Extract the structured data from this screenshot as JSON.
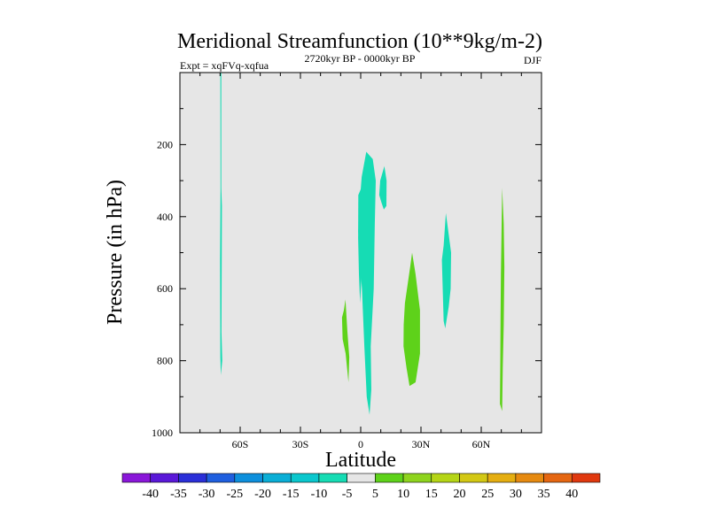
{
  "chart_data": {
    "type": "contour",
    "title": "Meridional Streamfunction (10**9kg/m-2)",
    "experiment": "Expt = xqFVq-xqfua",
    "period": "2720kyr BP - 0000kyr BP",
    "season": "DJF",
    "xlabel": "Latitude",
    "ylabel": "Pressure (in hPa)",
    "xlim": [
      -90,
      90
    ],
    "ylim": [
      0,
      1000
    ],
    "x_ticks": [
      {
        "value": -60,
        "label": "60S"
      },
      {
        "value": -30,
        "label": "30S"
      },
      {
        "value": 0,
        "label": "0"
      },
      {
        "value": 30,
        "label": "30N"
      },
      {
        "value": 60,
        "label": "60N"
      }
    ],
    "y_ticks": [
      {
        "value": 200,
        "label": "200"
      },
      {
        "value": 400,
        "label": "400"
      },
      {
        "value": 600,
        "label": "600"
      },
      {
        "value": 800,
        "label": "800"
      },
      {
        "value": 1000,
        "label": "1000"
      }
    ],
    "colorbar": {
      "labels": [
        "-40",
        "-35",
        "-30",
        "-25",
        "-20",
        "-15",
        "-10",
        "-5",
        "5",
        "10",
        "15",
        "20",
        "25",
        "30",
        "35",
        "40"
      ],
      "colors": [
        "#8a17d9",
        "#5a18d8",
        "#2a2fd8",
        "#1f5fdf",
        "#0d8fdc",
        "#0aaed6",
        "#0ac7cd",
        "#16dcb4",
        "#e6e6e6",
        "#5ed21a",
        "#8ed41e",
        "#b5d516",
        "#d3c814",
        "#e5ae11",
        "#e68a10",
        "#e56611",
        "#e0380e"
      ]
    },
    "regions": [
      {
        "level": -5,
        "outline": [
          [
            -69.9,
            0
          ],
          [
            -69.4,
            0
          ],
          [
            -69.4,
            320
          ],
          [
            -69.1,
            370
          ],
          [
            -69.3,
            720
          ],
          [
            -68.9,
            800
          ],
          [
            -69.6,
            840
          ],
          [
            -69.9,
            790
          ],
          [
            -70.0,
            520
          ],
          [
            -69.8,
            330
          ]
        ]
      },
      {
        "level": -5,
        "outline": [
          [
            -1.0,
            400
          ],
          [
            0.5,
            290
          ],
          [
            2.8,
            220
          ],
          [
            6.0,
            240
          ],
          [
            7.5,
            300
          ],
          [
            7.0,
            420
          ],
          [
            6.5,
            600
          ],
          [
            5.0,
            760
          ],
          [
            5.3,
            880
          ],
          [
            4.4,
            950
          ],
          [
            3.0,
            900
          ],
          [
            1.8,
            760
          ],
          [
            0.6,
            600
          ],
          [
            -0.6,
            500
          ],
          [
            -1.2,
            440
          ]
        ]
      },
      {
        "level": -5,
        "outline": [
          [
            -1.2,
            340
          ],
          [
            0.3,
            320
          ],
          [
            0.9,
            420
          ],
          [
            0.5,
            560
          ],
          [
            -0.3,
            640
          ],
          [
            -0.9,
            560
          ],
          [
            -1.3,
            460
          ]
        ]
      },
      {
        "level": -5,
        "outline": [
          [
            9.7,
            300
          ],
          [
            11.8,
            260
          ],
          [
            12.9,
            300
          ],
          [
            12.8,
            370
          ],
          [
            11.5,
            380
          ],
          [
            10.3,
            360
          ],
          [
            9.2,
            340
          ]
        ]
      },
      {
        "level": -5,
        "outline": [
          [
            41.3,
            480
          ],
          [
            42.4,
            390
          ],
          [
            43.6,
            440
          ],
          [
            45.0,
            500
          ],
          [
            44.8,
            600
          ],
          [
            43.8,
            650
          ],
          [
            42.1,
            710
          ],
          [
            41.3,
            690
          ],
          [
            40.7,
            580
          ],
          [
            40.4,
            520
          ]
        ]
      },
      {
        "level": 5,
        "outline": [
          [
            -8.4,
            660
          ],
          [
            -7.6,
            630
          ],
          [
            -6.6,
            720
          ],
          [
            -5.7,
            790
          ],
          [
            -6.1,
            860
          ],
          [
            -7.5,
            780
          ],
          [
            -9.0,
            740
          ],
          [
            -9.3,
            680
          ]
        ]
      },
      {
        "level": 5,
        "outline": [
          [
            22.0,
            640
          ],
          [
            24.6,
            540
          ],
          [
            25.6,
            500
          ],
          [
            27.3,
            560
          ],
          [
            29.5,
            660
          ],
          [
            29.5,
            780
          ],
          [
            27.3,
            860
          ],
          [
            24.3,
            870
          ],
          [
            22.8,
            820
          ],
          [
            21.3,
            760
          ],
          [
            21.4,
            700
          ]
        ]
      },
      {
        "level": 5,
        "outline": [
          [
            70.4,
            320
          ],
          [
            71.2,
            420
          ],
          [
            71.5,
            540
          ],
          [
            71.2,
            700
          ],
          [
            70.7,
            820
          ],
          [
            70.4,
            940
          ],
          [
            69.3,
            920
          ],
          [
            69.5,
            800
          ],
          [
            69.6,
            680
          ],
          [
            69.8,
            560
          ],
          [
            70.1,
            440
          ]
        ]
      }
    ]
  }
}
